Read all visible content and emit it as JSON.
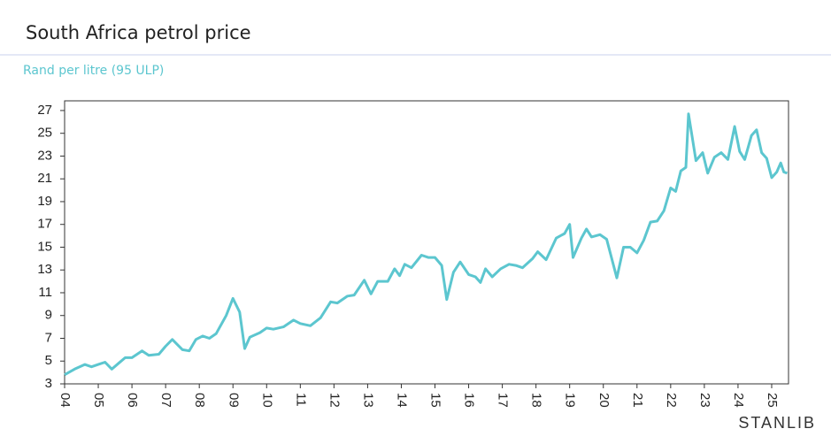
{
  "chart_data": {
    "type": "line",
    "title": "South Africa petrol price",
    "subtitle": "Rand per litre (95 ULP)",
    "brand": "STANLIB",
    "color": "#5cc6cf",
    "x": [
      2004.0,
      2004.3,
      2004.6,
      2004.8,
      2005.0,
      2005.2,
      2005.4,
      2005.6,
      2005.8,
      2006.0,
      2006.3,
      2006.5,
      2006.8,
      2007.0,
      2007.2,
      2007.5,
      2007.7,
      2007.9,
      2008.1,
      2008.3,
      2008.5,
      2008.8,
      2009.0,
      2009.2,
      2009.35,
      2009.5,
      2009.8,
      2010.0,
      2010.2,
      2010.5,
      2010.8,
      2011.0,
      2011.3,
      2011.6,
      2011.9,
      2012.1,
      2012.4,
      2012.6,
      2012.9,
      2013.1,
      2013.3,
      2013.6,
      2013.8,
      2013.95,
      2014.1,
      2014.3,
      2014.6,
      2014.8,
      2015.0,
      2015.2,
      2015.35,
      2015.55,
      2015.75,
      2016.0,
      2016.2,
      2016.35,
      2016.5,
      2016.7,
      2016.95,
      2017.2,
      2017.4,
      2017.6,
      2017.9,
      2018.05,
      2018.3,
      2018.6,
      2018.85,
      2019.0,
      2019.1,
      2019.35,
      2019.5,
      2019.65,
      2019.9,
      2020.1,
      2020.4,
      2020.6,
      2020.8,
      2021.0,
      2021.2,
      2021.4,
      2021.6,
      2021.8,
      2022.0,
      2022.15,
      2022.3,
      2022.45,
      2022.53,
      2022.75,
      2022.95,
      2023.1,
      2023.3,
      2023.5,
      2023.7,
      2023.9,
      2024.05,
      2024.2,
      2024.4,
      2024.55,
      2024.7,
      2024.85,
      2025.0,
      2025.15,
      2025.27,
      2025.36,
      2025.46
    ],
    "values": [
      3.8,
      4.3,
      4.7,
      4.5,
      4.7,
      4.9,
      4.3,
      4.8,
      5.3,
      5.3,
      5.9,
      5.5,
      5.6,
      6.3,
      6.9,
      6.0,
      5.9,
      6.9,
      7.2,
      7.0,
      7.4,
      9.0,
      10.5,
      9.3,
      6.1,
      7.1,
      7.5,
      7.9,
      7.8,
      8.0,
      8.6,
      8.3,
      8.1,
      8.8,
      10.2,
      10.1,
      10.7,
      10.8,
      12.1,
      10.9,
      12.0,
      12.0,
      13.1,
      12.5,
      13.5,
      13.2,
      14.3,
      14.1,
      14.1,
      13.4,
      10.4,
      12.8,
      13.7,
      12.6,
      12.4,
      11.9,
      13.1,
      12.4,
      13.1,
      13.5,
      13.4,
      13.2,
      14.0,
      14.6,
      13.9,
      15.8,
      16.2,
      17.0,
      14.1,
      15.8,
      16.6,
      15.9,
      16.1,
      15.7,
      12.3,
      15.0,
      15.0,
      14.5,
      15.6,
      17.2,
      17.3,
      18.2,
      20.2,
      19.9,
      21.7,
      22.0,
      26.7,
      22.6,
      23.3,
      21.5,
      22.9,
      23.3,
      22.7,
      25.6,
      23.4,
      22.7,
      24.8,
      25.3,
      23.3,
      22.8,
      21.1,
      21.6,
      22.4,
      21.6,
      21.5
    ],
    "xlim": [
      2004,
      2025.5
    ],
    "xticks": [
      {
        "value": 2004,
        "label": "04"
      },
      {
        "value": 2005,
        "label": "05"
      },
      {
        "value": 2006,
        "label": "06"
      },
      {
        "value": 2007,
        "label": "07"
      },
      {
        "value": 2008,
        "label": "08"
      },
      {
        "value": 2009,
        "label": "09"
      },
      {
        "value": 2010,
        "label": "10"
      },
      {
        "value": 2011,
        "label": "11"
      },
      {
        "value": 2012,
        "label": "12"
      },
      {
        "value": 2013,
        "label": "13"
      },
      {
        "value": 2014,
        "label": "14"
      },
      {
        "value": 2015,
        "label": "15"
      },
      {
        "value": 2016,
        "label": "16"
      },
      {
        "value": 2017,
        "label": "17"
      },
      {
        "value": 2018,
        "label": "18"
      },
      {
        "value": 2019,
        "label": "19"
      },
      {
        "value": 2020,
        "label": "20"
      },
      {
        "value": 2021,
        "label": "21"
      },
      {
        "value": 2022,
        "label": "22"
      },
      {
        "value": 2023,
        "label": "23"
      },
      {
        "value": 2024,
        "label": "24"
      },
      {
        "value": 2025,
        "label": "25"
      }
    ],
    "ylim": [
      3,
      27.85
    ],
    "yticks": [
      3,
      5,
      7,
      9,
      11,
      13,
      15,
      17,
      19,
      21,
      23,
      25,
      27
    ]
  }
}
